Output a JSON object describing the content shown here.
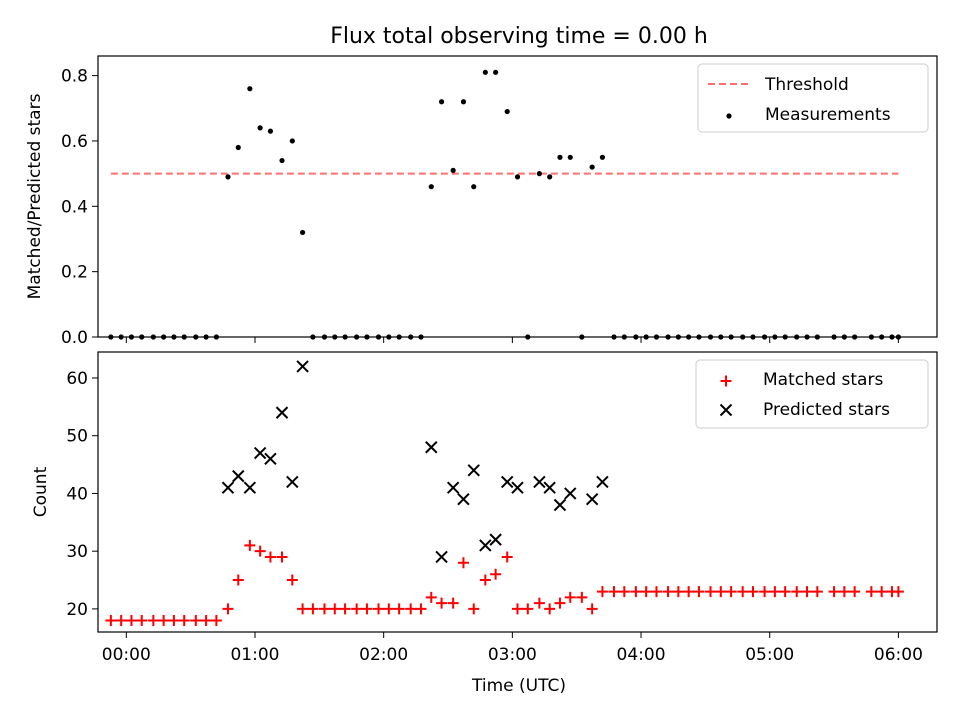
{
  "title": "Flux total observing time = 0.00 h",
  "xlabel": "Time (UTC)",
  "colors": {
    "threshold": "#ff6f6f",
    "measurement": "#000000",
    "matched": "#ff0000",
    "predicted": "#000000"
  },
  "chart_data": [
    {
      "type": "scatter",
      "title": "Flux total observing time = 0.00 h",
      "ylabel": "Matched/Predicted stars",
      "xlim": [
        -0.22,
        6.3
      ],
      "ylim": [
        0,
        0.86
      ],
      "yticks": [
        0.0,
        0.2,
        0.4,
        0.6,
        0.8
      ],
      "legend": "top-right",
      "series": [
        {
          "name": "Threshold",
          "kind": "line",
          "x": [
            -0.12,
            6.0
          ],
          "y": [
            0.5,
            0.5
          ]
        },
        {
          "name": "Measurements",
          "kind": "scatter",
          "x": [
            -0.12,
            -0.04,
            0.04,
            0.12,
            0.21,
            0.29,
            0.37,
            0.45,
            0.54,
            0.62,
            0.7,
            0.79,
            0.87,
            0.96,
            1.04,
            1.12,
            1.21,
            1.29,
            1.37,
            1.45,
            1.54,
            1.62,
            1.7,
            1.79,
            1.87,
            1.96,
            2.04,
            2.12,
            2.21,
            2.29,
            2.37,
            2.45,
            2.54,
            2.62,
            2.7,
            2.79,
            2.87,
            2.96,
            3.04,
            3.12,
            3.21,
            3.29,
            3.37,
            3.45,
            3.54,
            3.62,
            3.7,
            3.79,
            3.87,
            3.96,
            4.04,
            4.12,
            4.21,
            4.29,
            4.37,
            4.45,
            4.54,
            4.62,
            4.7,
            4.79,
            4.87,
            4.96,
            5.04,
            5.12,
            5.21,
            5.29,
            5.37,
            5.5,
            5.58,
            5.66,
            5.79,
            5.87,
            5.95,
            6.0
          ],
          "y": [
            0,
            0,
            0,
            0,
            0,
            0,
            0,
            0,
            0,
            0,
            0,
            0.49,
            0.58,
            0.76,
            0.64,
            0.63,
            0.54,
            0.6,
            0.32,
            0,
            0,
            0,
            0,
            0,
            0,
            0,
            0,
            0,
            0,
            0,
            0.46,
            0.72,
            0.51,
            0.72,
            0.46,
            0.81,
            0.81,
            0.69,
            0.49,
            0,
            0.5,
            0.49,
            0.55,
            0.55,
            0,
            0.52,
            0.55,
            0,
            0,
            0,
            0,
            0,
            0,
            0,
            0,
            0,
            0,
            0,
            0,
            0,
            0,
            0,
            0,
            0,
            0,
            0,
            0,
            0,
            0,
            0,
            0,
            0,
            0,
            0
          ]
        }
      ]
    },
    {
      "type": "scatter",
      "ylabel": "Count",
      "xlabel": "Time (UTC)",
      "xlim": [
        -0.22,
        6.3
      ],
      "ylim": [
        16,
        64.5
      ],
      "yticks": [
        20,
        30,
        40,
        50,
        60
      ],
      "xticks": [
        0,
        1,
        2,
        3,
        4,
        5,
        6
      ],
      "xticklabels": [
        "00:00",
        "01:00",
        "02:00",
        "03:00",
        "04:00",
        "05:00",
        "06:00"
      ],
      "legend": "top-right",
      "series": [
        {
          "name": "Matched stars",
          "marker": "+",
          "x": [
            -0.12,
            -0.04,
            0.04,
            0.12,
            0.21,
            0.29,
            0.37,
            0.45,
            0.54,
            0.62,
            0.7,
            0.79,
            0.87,
            0.96,
            1.04,
            1.12,
            1.21,
            1.29,
            1.37,
            1.45,
            1.54,
            1.62,
            1.7,
            1.79,
            1.87,
            1.96,
            2.04,
            2.12,
            2.21,
            2.29,
            2.37,
            2.45,
            2.54,
            2.62,
            2.7,
            2.79,
            2.87,
            2.96,
            3.04,
            3.12,
            3.21,
            3.29,
            3.37,
            3.45,
            3.54,
            3.62,
            3.7,
            3.79,
            3.87,
            3.96,
            4.04,
            4.12,
            4.21,
            4.29,
            4.37,
            4.45,
            4.54,
            4.62,
            4.7,
            4.79,
            4.87,
            4.96,
            5.04,
            5.12,
            5.21,
            5.29,
            5.37,
            5.5,
            5.58,
            5.66,
            5.79,
            5.87,
            5.95,
            6.0
          ],
          "y": [
            18,
            18,
            18,
            18,
            18,
            18,
            18,
            18,
            18,
            18,
            18,
            20,
            25,
            31,
            30,
            29,
            29,
            25,
            20,
            20,
            20,
            20,
            20,
            20,
            20,
            20,
            20,
            20,
            20,
            20,
            22,
            21,
            21,
            28,
            20,
            25,
            26,
            29,
            20,
            20,
            21,
            20,
            21,
            22,
            22,
            20,
            23,
            23,
            23,
            23,
            23,
            23,
            23,
            23,
            23,
            23,
            23,
            23,
            23,
            23,
            23,
            23,
            23,
            23,
            23,
            23,
            23,
            23,
            23,
            23,
            23,
            23,
            23,
            23
          ]
        },
        {
          "name": "Predicted stars",
          "marker": "x",
          "x": [
            0.79,
            0.87,
            0.96,
            1.04,
            1.12,
            1.21,
            1.29,
            1.37,
            2.37,
            2.45,
            2.54,
            2.62,
            2.7,
            2.79,
            2.87,
            2.96,
            3.04,
            3.21,
            3.29,
            3.37,
            3.45,
            3.62,
            3.7
          ],
          "y": [
            41,
            43,
            41,
            47,
            46,
            54,
            42,
            62,
            48,
            29,
            41,
            39,
            44,
            31,
            32,
            42,
            41,
            42,
            41,
            38,
            40,
            39,
            42
          ]
        }
      ]
    }
  ]
}
